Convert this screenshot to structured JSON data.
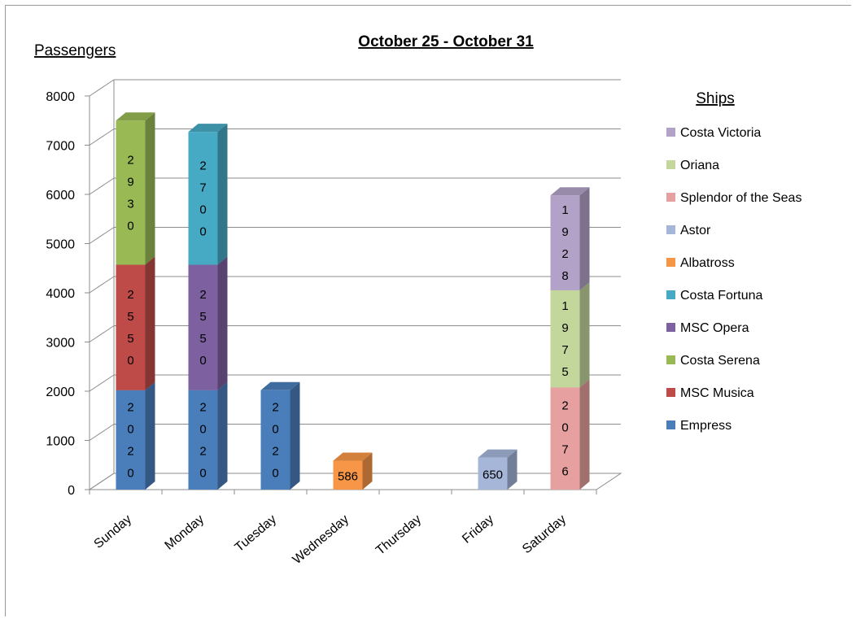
{
  "chart_data": {
    "type": "bar",
    "stacked": true,
    "three_d": true,
    "title": "October 25 - October 31",
    "ylabel": "Passengers",
    "xlabel": "",
    "ylim": [
      0,
      8000
    ],
    "yticks": [
      0,
      1000,
      2000,
      3000,
      4000,
      5000,
      6000,
      7000,
      8000
    ],
    "grid": true,
    "legend_title": "Ships",
    "legend_position": "right",
    "categories": [
      "Sunday",
      "Monday",
      "Tuesday",
      "Wednesday",
      "Thursday",
      "Friday",
      "Saturday"
    ],
    "series": [
      {
        "name": "Empress",
        "color": "#4a7ebb",
        "values": [
          2020,
          2020,
          2020,
          0,
          0,
          0,
          0
        ]
      },
      {
        "name": "MSC Musica",
        "color": "#be4b48",
        "values": [
          2550,
          0,
          0,
          0,
          0,
          0,
          0
        ]
      },
      {
        "name": "Costa Serena",
        "color": "#98b954",
        "values": [
          2930,
          0,
          0,
          0,
          0,
          0,
          0
        ]
      },
      {
        "name": "MSC Opera",
        "color": "#7d60a0",
        "values": [
          0,
          2550,
          0,
          0,
          0,
          0,
          0
        ]
      },
      {
        "name": "Costa Fortuna",
        "color": "#46aac4",
        "values": [
          0,
          2700,
          0,
          0,
          0,
          0,
          0
        ]
      },
      {
        "name": "Albatross",
        "color": "#f79646",
        "values": [
          0,
          0,
          0,
          586,
          0,
          0,
          0
        ]
      },
      {
        "name": "Astor",
        "color": "#a5b6d9",
        "values": [
          0,
          0,
          0,
          0,
          0,
          650,
          0
        ]
      },
      {
        "name": "Splendor of the Seas",
        "color": "#e5a09f",
        "values": [
          0,
          0,
          0,
          0,
          0,
          0,
          2076
        ]
      },
      {
        "name": "Oriana",
        "color": "#c3d69b",
        "values": [
          0,
          0,
          0,
          0,
          0,
          0,
          1975
        ]
      },
      {
        "name": "Costa Victoria",
        "color": "#b3a2c7",
        "values": [
          0,
          0,
          0,
          0,
          0,
          0,
          1928
        ]
      }
    ],
    "legend_order": [
      "Costa Victoria",
      "Oriana",
      "Splendor of the Seas",
      "Astor",
      "Albatross",
      "Costa Fortuna",
      "MSC Opera",
      "Costa Serena",
      "MSC Musica",
      "Empress"
    ],
    "data_label_style": {
      "Empress": "vertical",
      "MSC Musica": "vertical",
      "Costa Serena": "vertical",
      "MSC Opera": "vertical",
      "Costa Fortuna": "vertical",
      "Albatross": "horizontal",
      "Astor": "horizontal",
      "Splendor of the Seas": "vertical",
      "Oriana": "vertical",
      "Costa Victoria": "vertical"
    }
  }
}
